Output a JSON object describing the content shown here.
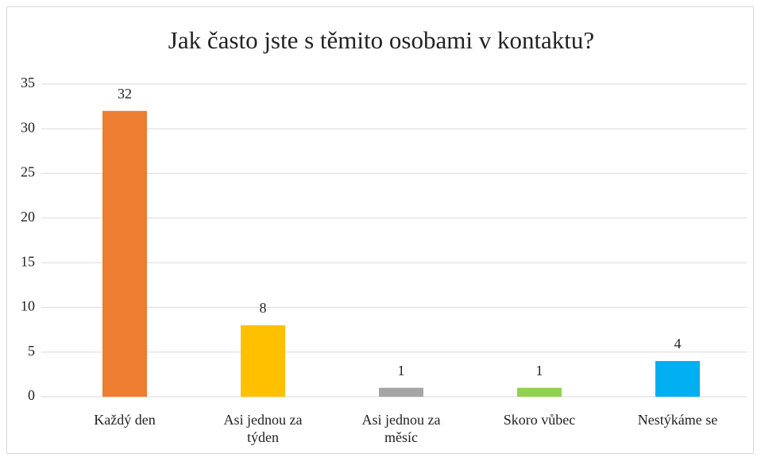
{
  "chart_data": {
    "type": "bar",
    "title": "Jak často jste s těmito osobami v kontaktu?",
    "categories": [
      "Každý den",
      "Asi jednou za týden",
      "Asi jednou za měsíc",
      "Skoro vůbec",
      "Nestýkáme se"
    ],
    "values": [
      32,
      8,
      1,
      1,
      4
    ],
    "colors": [
      "#ed7d31",
      "#ffc000",
      "#a5a5a5",
      "#92d050",
      "#00b0f0"
    ],
    "ylim": [
      0,
      35
    ],
    "yticks": [
      0,
      5,
      10,
      15,
      20,
      25,
      30,
      35
    ],
    "grid": true
  }
}
